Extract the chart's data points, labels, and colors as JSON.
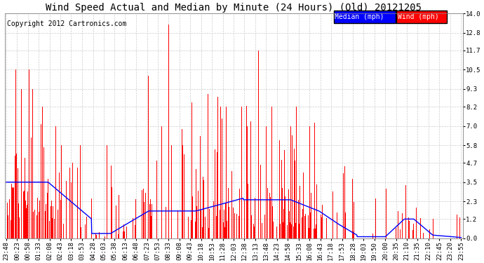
{
  "title": "Wind Speed Actual and Median by Minute (24 Hours) (Old) 20121205",
  "copyright": "Copyright 2012 Cartronics.com",
  "ylabel_right": [
    "0.0",
    "1.2",
    "2.3",
    "3.5",
    "4.7",
    "5.8",
    "7.0",
    "8.2",
    "9.3",
    "10.5",
    "11.7",
    "12.8",
    "14.0"
  ],
  "yticks_right": [
    0.0,
    1.2,
    2.3,
    3.5,
    4.7,
    5.8,
    7.0,
    8.2,
    9.3,
    10.5,
    11.7,
    12.8,
    14.0
  ],
  "ylim": [
    0,
    14.0
  ],
  "bg_color": "#ffffff",
  "plot_bg_color": "#ffffff",
  "grid_color": "#cccccc",
  "wind_color": "#ff0000",
  "median_color": "#0000ff",
  "legend_median_bg": "#0000ff",
  "legend_wind_bg": "#ff0000",
  "title_fontsize": 10,
  "copyright_fontsize": 7,
  "tick_fontsize": 6.5,
  "legend_fontsize": 7,
  "tick_labels": [
    "23:48",
    "00:23",
    "00:58",
    "01:33",
    "02:08",
    "02:43",
    "03:18",
    "03:53",
    "04:28",
    "05:03",
    "05:38",
    "06:13",
    "06:48",
    "07:23",
    "07:53",
    "08:33",
    "09:08",
    "09:43",
    "10:18",
    "10:53",
    "11:28",
    "12:03",
    "12:38",
    "13:13",
    "13:48",
    "14:23",
    "14:58",
    "15:33",
    "16:08",
    "16:43",
    "17:18",
    "17:53",
    "18:28",
    "19:03",
    "19:50",
    "20:00",
    "20:35",
    "21:10",
    "21:35",
    "22:10",
    "22:45",
    "23:20",
    "23:55"
  ]
}
